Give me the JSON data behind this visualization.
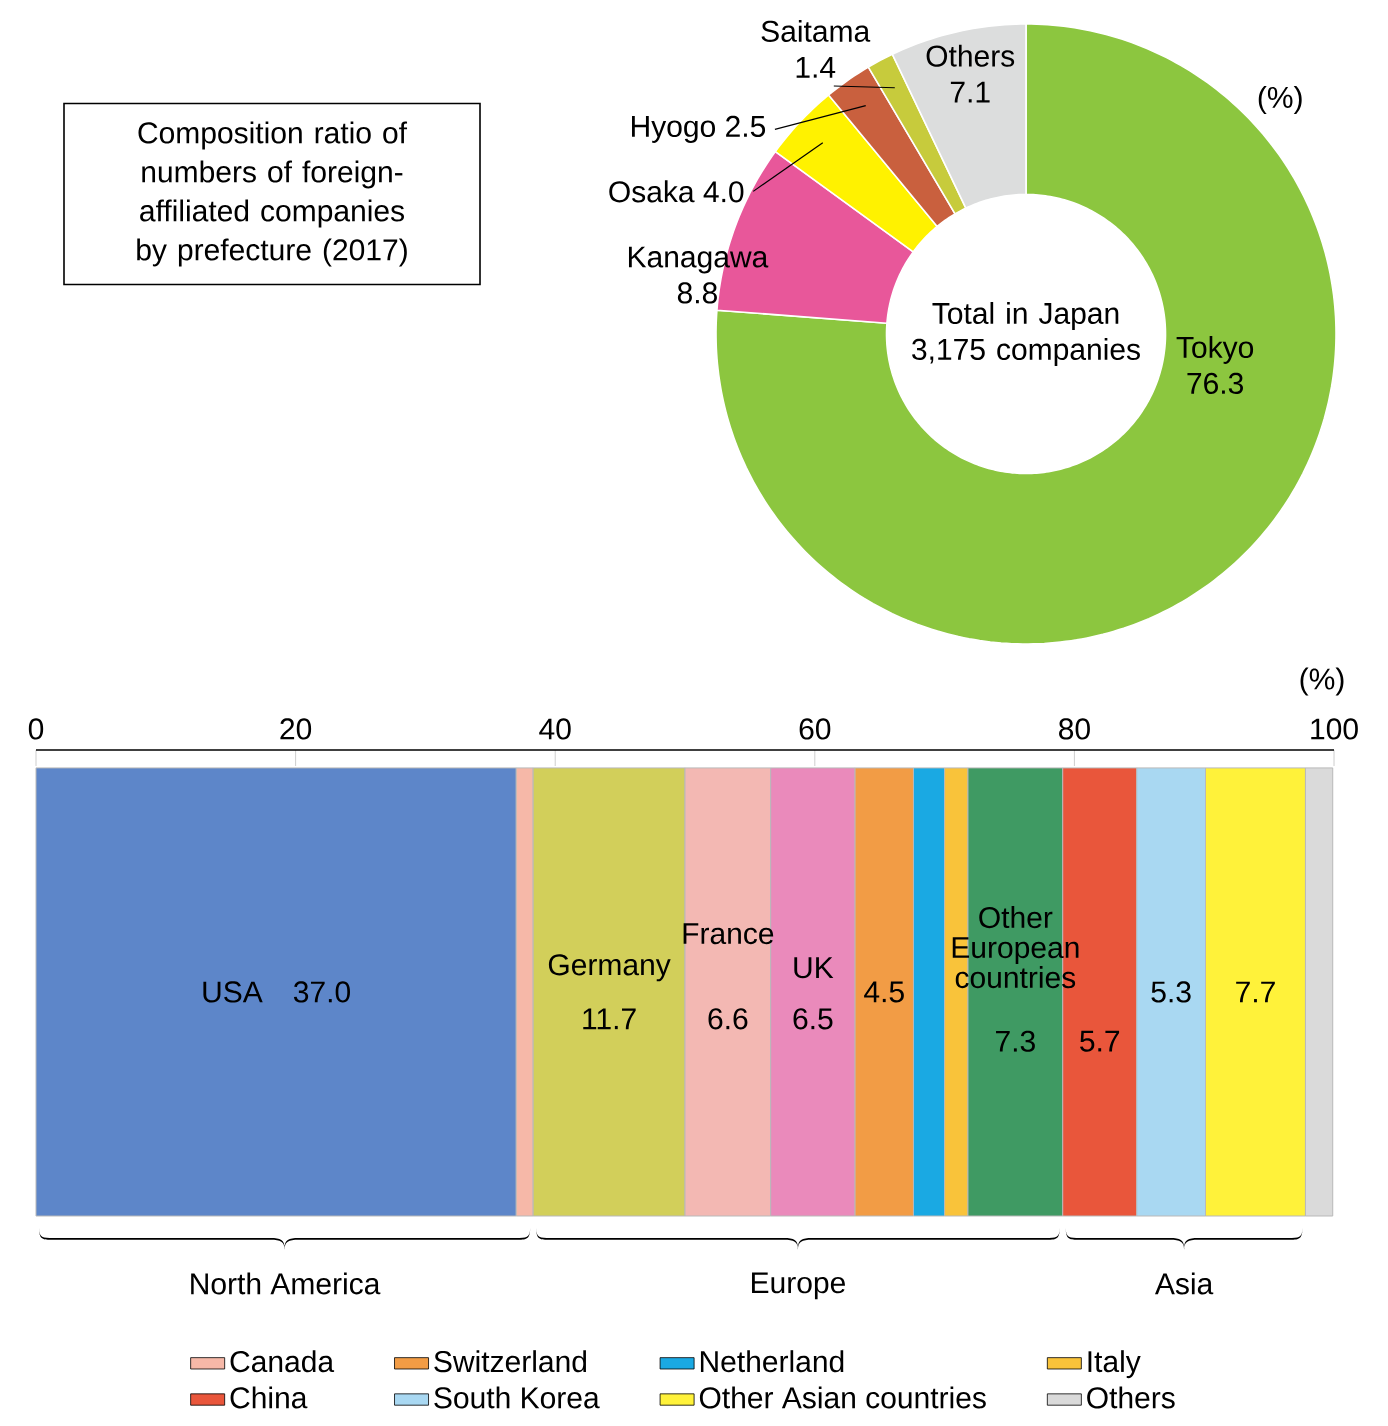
{
  "chart_data": [
    {
      "type": "donut",
      "title": "Composition ratio of numbers of foreign-affiliated companies by prefecture (2017)",
      "categories": [
        "Tokyo",
        "Kanagawa",
        "Osaka",
        "Hyogo",
        "Saitama",
        "Others"
      ],
      "values": [
        76.3,
        8.8,
        4.0,
        2.5,
        1.4,
        7.1
      ],
      "colors": [
        "#8cc63f",
        "#e8579a",
        "#fff200",
        "#c9603e",
        "#c7cb3c",
        "#dcdddd"
      ],
      "value_labels": [
        "76.3",
        "8.8",
        "4.0",
        "2.5",
        "1.4",
        "7.1"
      ],
      "data_labels": true,
      "annotations": [
        "Total in Japan 3,175 companies",
        "(%)"
      ]
    },
    {
      "type": "bar",
      "orientation": "horizontal",
      "stacked": true,
      "categories": [
        null
      ],
      "xlim": [
        0,
        100
      ],
      "xticks": [
        0,
        20,
        40,
        60,
        80,
        100
      ],
      "xlabel": "(%)",
      "legend": "bottom",
      "annotations": [
        "North America",
        "Europe",
        "Asia"
      ],
      "series": [
        {
          "name": "USA",
          "color": "#5d86c9",
          "values": [
            37.0
          ],
          "value_labels": [
            "37.0"
          ]
        },
        {
          "name": "Canada",
          "color": "#f6b8a8",
          "values": [
            1.3
          ],
          "value_labels": [
            null
          ]
        },
        {
          "name": "Germany",
          "color": "#d2cf5a",
          "values": [
            11.7
          ],
          "value_labels": [
            "11.7"
          ]
        },
        {
          "name": "France",
          "color": "#f3b8b3",
          "values": [
            6.6
          ],
          "value_labels": [
            "6.6"
          ]
        },
        {
          "name": "UK",
          "color": "#ea8abb",
          "values": [
            6.5
          ],
          "value_labels": [
            "6.5"
          ]
        },
        {
          "name": "Switzerland",
          "color": "#f29c45",
          "values": [
            4.5
          ],
          "value_labels": [
            "4.5"
          ]
        },
        {
          "name": "Netherland",
          "color": "#1aa9e3",
          "values": [
            2.4
          ],
          "value_labels": [
            null
          ]
        },
        {
          "name": "Italy",
          "color": "#f9c33a",
          "values": [
            1.8
          ],
          "value_labels": [
            null
          ]
        },
        {
          "name": "Other European countries",
          "color": "#3f9a63",
          "values": [
            7.3
          ],
          "value_labels": [
            "7.3"
          ]
        },
        {
          "name": "China",
          "color": "#e9563b",
          "values": [
            5.7
          ],
          "value_labels": [
            "5.7"
          ]
        },
        {
          "name": "South Korea",
          "color": "#a9d8f2",
          "values": [
            5.3
          ],
          "value_labels": [
            "5.3"
          ]
        },
        {
          "name": "Other Asian countries",
          "color": "#fff23a",
          "values": [
            7.7
          ],
          "value_labels": [
            "7.7"
          ]
        },
        {
          "name": "Others",
          "color": "#dadada",
          "values": [
            2.1
          ],
          "value_labels": [
            null
          ]
        }
      ]
    }
  ]
}
